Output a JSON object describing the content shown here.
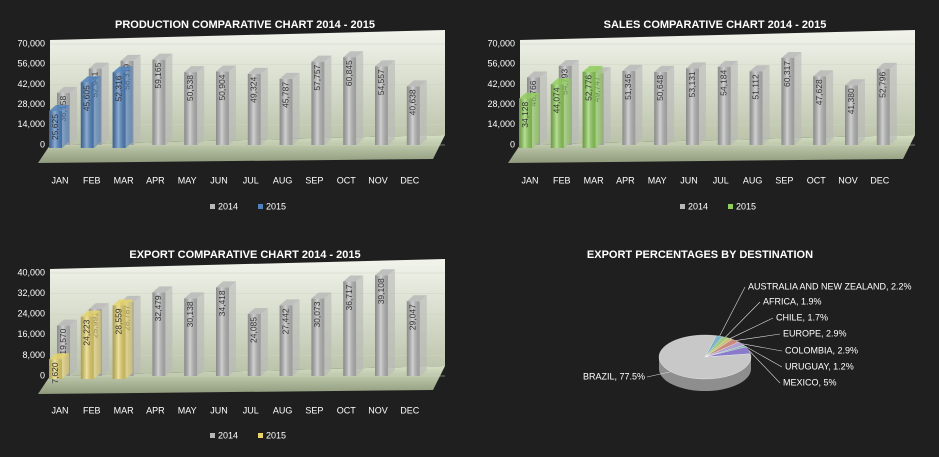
{
  "chart_data": [
    {
      "type": "bar",
      "title": "PRODUCTION COMPARATIVE CHART 2014 - 2015",
      "categories": [
        "JAN",
        "FEB",
        "MAR",
        "APR",
        "MAY",
        "JUN",
        "JUL",
        "AUG",
        "SEP",
        "OCT",
        "NOV",
        "DEC"
      ],
      "series": [
        {
          "name": "2014",
          "color": "#b8b8b8",
          "values": [
            36158,
            52941,
            58319,
            59165,
            50538,
            50904,
            49324,
            45787,
            57757,
            60845,
            54557,
            40638
          ],
          "value_labels": [
            "36,158",
            "52,941",
            "58,319",
            "59,165",
            "50,538",
            "50,904",
            "49,324",
            "45,787",
            "57,757",
            "60,845",
            "54,557",
            "40,638"
          ]
        },
        {
          "name": "2015",
          "color": "#4f81bd",
          "values": [
            25625,
            45605,
            52316,
            null,
            null,
            null,
            null,
            null,
            null,
            null,
            null,
            null
          ],
          "value_labels": [
            "25,625",
            "45,605",
            "52,316",
            null,
            null,
            null,
            null,
            null,
            null,
            null,
            null,
            null
          ]
        }
      ],
      "ylim": [
        0,
        70000
      ],
      "yticks": [
        0,
        {
          "value": 14000,
          "label": "14,000"
        },
        {
          "value": 28000,
          "label": "28,000"
        },
        {
          "value": 42000,
          "label": "42,000"
        },
        {
          "value": 56000,
          "label": "56,000"
        },
        {
          "value": 70000,
          "label": "70,000"
        }
      ],
      "legend": "bottom"
    },
    {
      "type": "bar",
      "title": "SALES COMPARATIVE CHART 2014 - 2015",
      "categories": [
        "JAN",
        "FEB",
        "MAR",
        "APR",
        "MAY",
        "JUN",
        "JUL",
        "AUG",
        "SEP",
        "OCT",
        "NOV",
        "DEC"
      ],
      "series": [
        {
          "name": "2014",
          "color": "#b8b8b8",
          "values": [
            46766,
            54793,
            49747,
            51346,
            50648,
            53131,
            54184,
            51112,
            60317,
            47628,
            41380,
            52796
          ],
          "value_labels": [
            "46,766",
            "54,793",
            "49,747",
            "51,346",
            "50,648",
            "53,131",
            "54,184",
            "51,112",
            "60,317",
            "47,628",
            "41,380",
            "52,796"
          ]
        },
        {
          "name": "2015",
          "color": "#8fce5a",
          "values": [
            34128,
            44074,
            52776,
            null,
            null,
            null,
            null,
            null,
            null,
            null,
            null,
            null
          ],
          "value_labels": [
            "34,128",
            "44,074",
            "52,776",
            null,
            null,
            null,
            null,
            null,
            null,
            null,
            null,
            null
          ]
        }
      ],
      "ylim": [
        0,
        70000
      ],
      "yticks": [
        0,
        {
          "value": 14000,
          "label": "14,000"
        },
        {
          "value": 28000,
          "label": "28,000"
        },
        {
          "value": 42000,
          "label": "42,000"
        },
        {
          "value": 56000,
          "label": "56,000"
        },
        {
          "value": 70000,
          "label": "70,000"
        }
      ],
      "legend": "bottom"
    },
    {
      "type": "bar",
      "title": "EXPORT COMPARATIVE CHART 2014 - 2015",
      "categories": [
        "JAN",
        "FEB",
        "MAR",
        "APR",
        "MAY",
        "JUN",
        "JUL",
        "AUG",
        "SEP",
        "OCT",
        "NOV",
        "DEC"
      ],
      "series": [
        {
          "name": "2014",
          "color": "#b8b8b8",
          "values": [
            19570,
            25991,
            28787,
            32479,
            30138,
            34418,
            24085,
            27442,
            30073,
            36717,
            39108,
            29047
          ],
          "value_labels": [
            "19,570",
            "25,991",
            "28,787",
            "32,479",
            "30,138",
            "34,418",
            "24,085",
            "27,442",
            "30,073",
            "36,717",
            "39,108",
            "29,047"
          ]
        },
        {
          "name": "2015",
          "color": "#e6d36a",
          "values": [
            7620,
            24223,
            28559,
            null,
            null,
            null,
            null,
            null,
            null,
            null,
            null,
            null
          ],
          "value_labels": [
            "7,620",
            "24,223",
            "28,559",
            null,
            null,
            null,
            null,
            null,
            null,
            null,
            null,
            null
          ]
        }
      ],
      "ylim": [
        0,
        40000
      ],
      "yticks": [
        0,
        {
          "value": 8000,
          "label": "8,000"
        },
        {
          "value": 16000,
          "label": "16,000"
        },
        {
          "value": 24000,
          "label": "24,000"
        },
        {
          "value": 32000,
          "label": "32,000"
        },
        {
          "value": 40000,
          "label": "40,000"
        }
      ],
      "legend": "bottom"
    },
    {
      "type": "pie",
      "title": "EXPORT PERCENTAGES BY DESTINATION",
      "values": [
        2.2,
        1.9,
        1.7,
        2.9,
        2.9,
        1.2,
        5,
        77.5
      ],
      "value_labels": [
        "AUSTRALIA AND NEW ZEALAND, 2.2%",
        "AFRICA, 1.9%",
        "CHILE, 1.7%",
        "EUROPE, 2.9%",
        "COLOMBIA, 2.9%",
        "URUGUAY, 1.2%",
        "MEXICO, 5%",
        "BRAZIL, 77.5%"
      ],
      "colors": [
        "#7fb3c8",
        "#9ec97a",
        "#c9c27a",
        "#c98a7a",
        "#b0a0d0",
        "#7fb8a8",
        "#8a7acc",
        "#c8c8c8"
      ]
    }
  ]
}
